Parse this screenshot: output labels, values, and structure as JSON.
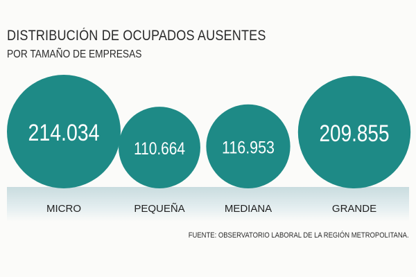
{
  "chart_data": {
    "type": "bubble",
    "title": "DISTRIBUCIÓN DE OCUPADOS AUSENTES",
    "subtitle": "POR TAMAÑO DE EMPRESAS",
    "categories": [
      "MICRO",
      "PEQUEÑA",
      "MEDIANA",
      "GRANDE"
    ],
    "values": [
      214034,
      110664,
      116953,
      209855
    ],
    "value_labels": [
      "214.034",
      "110.664",
      "116.953",
      "209.855"
    ],
    "source": "FUENTE: OBSERVATORIO LABORAL DE LA REGIÓN METROPOLITANA.",
    "colors": {
      "bubble": "#1e8a86",
      "ground": "#d6e6e8",
      "text": "#2a2a2a"
    }
  }
}
